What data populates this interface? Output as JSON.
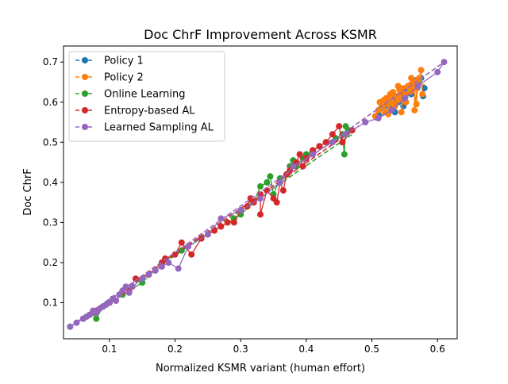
{
  "chart_data": {
    "type": "line",
    "title": "Doc ChrF Improvement Across KSMR",
    "xlabel": "Normalized KSMR variant (human effort)",
    "ylabel": "Doc ChrF",
    "xlim": [
      0.03,
      0.63
    ],
    "ylim": [
      0.01,
      0.74
    ],
    "xticks": [
      0.1,
      0.2,
      0.3,
      0.4,
      0.5,
      0.6
    ],
    "xtick_labels": [
      "0.1",
      "0.2",
      "0.3",
      "0.4",
      "0.5",
      "0.6"
    ],
    "yticks": [
      0.1,
      0.2,
      0.3,
      0.4,
      0.5,
      0.6,
      0.7
    ],
    "ytick_labels": [
      "0.1",
      "0.2",
      "0.3",
      "0.4",
      "0.5",
      "0.6",
      "0.7"
    ],
    "grid": false,
    "legend_position": "top-left",
    "series": [
      {
        "name": "Policy 1",
        "color": "#1f77b4",
        "trend": [
          [
            0.505,
            0.555
          ],
          [
            0.58,
            0.64
          ]
        ],
        "points": [
          [
            0.51,
            0.57
          ],
          [
            0.52,
            0.59
          ],
          [
            0.525,
            0.6
          ],
          [
            0.53,
            0.585
          ],
          [
            0.535,
            0.61
          ],
          [
            0.54,
            0.6
          ],
          [
            0.545,
            0.625
          ],
          [
            0.55,
            0.615
          ],
          [
            0.555,
            0.63
          ],
          [
            0.56,
            0.62
          ],
          [
            0.565,
            0.64
          ],
          [
            0.57,
            0.65
          ],
          [
            0.575,
            0.66
          ],
          [
            0.58,
            0.635
          ],
          [
            0.578,
            0.615
          ],
          [
            0.568,
            0.655
          ],
          [
            0.548,
            0.59
          ],
          [
            0.535,
            0.575
          ]
        ]
      },
      {
        "name": "Policy 2",
        "color": "#ff7f0e",
        "trend": [
          [
            0.505,
            0.56
          ],
          [
            0.58,
            0.645
          ]
        ],
        "points": [
          [
            0.505,
            0.565
          ],
          [
            0.51,
            0.58
          ],
          [
            0.512,
            0.6
          ],
          [
            0.515,
            0.59
          ],
          [
            0.518,
            0.605
          ],
          [
            0.52,
            0.575
          ],
          [
            0.522,
            0.61
          ],
          [
            0.525,
            0.595
          ],
          [
            0.528,
            0.62
          ],
          [
            0.53,
            0.6
          ],
          [
            0.532,
            0.625
          ],
          [
            0.535,
            0.59
          ],
          [
            0.538,
            0.615
          ],
          [
            0.54,
            0.605
          ],
          [
            0.542,
            0.63
          ],
          [
            0.545,
            0.61
          ],
          [
            0.548,
            0.635
          ],
          [
            0.55,
            0.62
          ],
          [
            0.552,
            0.6
          ],
          [
            0.555,
            0.64
          ],
          [
            0.558,
            0.625
          ],
          [
            0.56,
            0.645
          ],
          [
            0.562,
            0.63
          ],
          [
            0.565,
            0.65
          ],
          [
            0.568,
            0.635
          ],
          [
            0.57,
            0.655
          ],
          [
            0.572,
            0.66
          ],
          [
            0.575,
            0.68
          ],
          [
            0.577,
            0.62
          ],
          [
            0.565,
            0.58
          ],
          [
            0.568,
            0.595
          ],
          [
            0.545,
            0.575
          ],
          [
            0.525,
            0.57
          ],
          [
            0.56,
            0.66
          ],
          [
            0.54,
            0.64
          ]
        ]
      },
      {
        "name": "Online Learning",
        "color": "#2ca02c",
        "trend": [
          [
            0.05,
            0.05
          ],
          [
            0.47,
            0.52
          ]
        ],
        "points": [
          [
            0.075,
            0.075
          ],
          [
            0.08,
            0.06
          ],
          [
            0.09,
            0.09
          ],
          [
            0.1,
            0.1
          ],
          [
            0.12,
            0.12
          ],
          [
            0.15,
            0.15
          ],
          [
            0.18,
            0.2
          ],
          [
            0.21,
            0.23
          ],
          [
            0.24,
            0.26
          ],
          [
            0.26,
            0.28
          ],
          [
            0.29,
            0.31
          ],
          [
            0.3,
            0.32
          ],
          [
            0.32,
            0.35
          ],
          [
            0.33,
            0.39
          ],
          [
            0.34,
            0.4
          ],
          [
            0.345,
            0.415
          ],
          [
            0.35,
            0.37
          ],
          [
            0.36,
            0.41
          ],
          [
            0.37,
            0.42
          ],
          [
            0.375,
            0.44
          ],
          [
            0.38,
            0.455
          ],
          [
            0.385,
            0.44
          ],
          [
            0.395,
            0.46
          ],
          [
            0.4,
            0.47
          ],
          [
            0.41,
            0.48
          ],
          [
            0.42,
            0.49
          ],
          [
            0.43,
            0.5
          ],
          [
            0.445,
            0.51
          ],
          [
            0.455,
            0.52
          ],
          [
            0.458,
            0.47
          ],
          [
            0.46,
            0.54
          ],
          [
            0.465,
            0.53
          ]
        ]
      },
      {
        "name": "Entropy-based AL",
        "color": "#d62728",
        "trend": [
          [
            0.05,
            0.05
          ],
          [
            0.48,
            0.54
          ]
        ],
        "points": [
          [
            0.06,
            0.06
          ],
          [
            0.07,
            0.07
          ],
          [
            0.08,
            0.08
          ],
          [
            0.1,
            0.1
          ],
          [
            0.13,
            0.13
          ],
          [
            0.14,
            0.16
          ],
          [
            0.16,
            0.17
          ],
          [
            0.18,
            0.2
          ],
          [
            0.185,
            0.21
          ],
          [
            0.2,
            0.22
          ],
          [
            0.21,
            0.25
          ],
          [
            0.225,
            0.22
          ],
          [
            0.24,
            0.26
          ],
          [
            0.26,
            0.28
          ],
          [
            0.27,
            0.29
          ],
          [
            0.28,
            0.3
          ],
          [
            0.29,
            0.3
          ],
          [
            0.3,
            0.33
          ],
          [
            0.31,
            0.34
          ],
          [
            0.315,
            0.36
          ],
          [
            0.32,
            0.35
          ],
          [
            0.33,
            0.37
          ],
          [
            0.33,
            0.32
          ],
          [
            0.34,
            0.38
          ],
          [
            0.35,
            0.36
          ],
          [
            0.355,
            0.35
          ],
          [
            0.36,
            0.4
          ],
          [
            0.365,
            0.38
          ],
          [
            0.37,
            0.42
          ],
          [
            0.375,
            0.43
          ],
          [
            0.38,
            0.44
          ],
          [
            0.385,
            0.45
          ],
          [
            0.39,
            0.47
          ],
          [
            0.395,
            0.44
          ],
          [
            0.4,
            0.46
          ],
          [
            0.41,
            0.48
          ],
          [
            0.42,
            0.49
          ],
          [
            0.43,
            0.5
          ],
          [
            0.44,
            0.52
          ],
          [
            0.45,
            0.54
          ],
          [
            0.455,
            0.5
          ],
          [
            0.47,
            0.53
          ]
        ]
      },
      {
        "name": "Learned Sampling AL",
        "color": "#9467bd",
        "trend": [
          [
            0.04,
            0.04
          ],
          [
            0.61,
            0.7
          ]
        ],
        "points": [
          [
            0.04,
            0.04
          ],
          [
            0.05,
            0.05
          ],
          [
            0.06,
            0.06
          ],
          [
            0.065,
            0.065
          ],
          [
            0.07,
            0.07
          ],
          [
            0.075,
            0.08
          ],
          [
            0.08,
            0.075
          ],
          [
            0.085,
            0.085
          ],
          [
            0.09,
            0.09
          ],
          [
            0.095,
            0.095
          ],
          [
            0.1,
            0.1
          ],
          [
            0.105,
            0.11
          ],
          [
            0.11,
            0.105
          ],
          [
            0.115,
            0.12
          ],
          [
            0.12,
            0.13
          ],
          [
            0.125,
            0.14
          ],
          [
            0.13,
            0.125
          ],
          [
            0.135,
            0.14
          ],
          [
            0.15,
            0.16
          ],
          [
            0.16,
            0.17
          ],
          [
            0.17,
            0.18
          ],
          [
            0.18,
            0.19
          ],
          [
            0.19,
            0.2
          ],
          [
            0.205,
            0.185
          ],
          [
            0.22,
            0.24
          ],
          [
            0.25,
            0.27
          ],
          [
            0.27,
            0.31
          ],
          [
            0.3,
            0.33
          ],
          [
            0.33,
            0.36
          ],
          [
            0.36,
            0.4
          ],
          [
            0.38,
            0.44
          ],
          [
            0.41,
            0.47
          ],
          [
            0.44,
            0.5
          ],
          [
            0.46,
            0.52
          ],
          [
            0.49,
            0.55
          ],
          [
            0.51,
            0.56
          ],
          [
            0.53,
            0.58
          ],
          [
            0.55,
            0.61
          ],
          [
            0.57,
            0.64
          ],
          [
            0.6,
            0.675
          ],
          [
            0.61,
            0.7
          ]
        ]
      }
    ]
  }
}
